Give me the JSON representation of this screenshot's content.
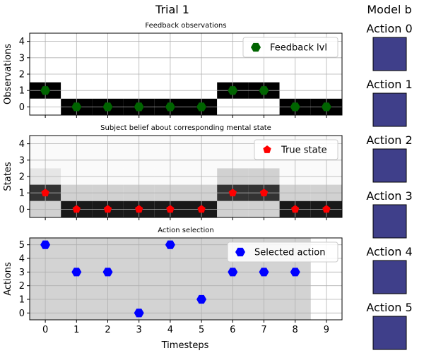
{
  "figure_title": "Trial 1",
  "model_title": "Model b",
  "xlabel": "Timesteps",
  "x_ticks": [
    0,
    1,
    2,
    3,
    4,
    5,
    6,
    7,
    8,
    9
  ],
  "colors": {
    "feedback_marker": "#006400",
    "true_state_marker": "#ff0000",
    "action_marker": "#0000ff",
    "action_box": "#3f3f8a",
    "grid": "#b0b0b0"
  },
  "chart_data": [
    {
      "type": "heatmap",
      "title": "Feedback observations",
      "ylabel": "Observations",
      "ylim": [
        -0.5,
        4.5
      ],
      "y_ticks": [
        0,
        1,
        2,
        3,
        4
      ],
      "legend": {
        "label": "Feedback lvl",
        "placement": "top-right"
      },
      "heatmap": {
        "value_encoding": "black = 1, white = 0",
        "rows": [
          {
            "y": 4,
            "values": [
              0,
              0,
              0,
              0,
              0,
              0,
              0,
              0,
              0,
              0
            ]
          },
          {
            "y": 3,
            "values": [
              0,
              0,
              0,
              0,
              0,
              0,
              0,
              0,
              0,
              0
            ]
          },
          {
            "y": 2,
            "values": [
              0,
              0,
              0,
              0,
              0,
              0,
              0,
              0,
              0,
              0
            ]
          },
          {
            "y": 1,
            "values": [
              1,
              0,
              0,
              0,
              0,
              0,
              1,
              1,
              0,
              0
            ]
          },
          {
            "y": 0,
            "values": [
              0,
              1,
              1,
              1,
              1,
              1,
              0,
              0,
              1,
              1
            ]
          }
        ]
      },
      "series": [
        {
          "name": "Feedback lvl",
          "x": [
            0,
            1,
            2,
            3,
            4,
            5,
            6,
            7,
            8,
            9
          ],
          "y": [
            1,
            0,
            0,
            0,
            0,
            0,
            1,
            1,
            0,
            0
          ]
        }
      ]
    },
    {
      "type": "heatmap",
      "title": "Subject belief about corresponding mental state",
      "ylabel": "States",
      "ylim": [
        -0.5,
        4.5
      ],
      "y_ticks": [
        0,
        1,
        2,
        3,
        4
      ],
      "legend": {
        "label": "True state",
        "placement": "top-right"
      },
      "heatmap": {
        "value_encoding": "belief probability, darker = higher",
        "rows": [
          {
            "y": 4,
            "values": [
              0.02,
              0.02,
              0.02,
              0.02,
              0.02,
              0.02,
              0.02,
              0.02,
              0.02,
              0.02
            ]
          },
          {
            "y": 3,
            "values": [
              0.02,
              0.02,
              0.02,
              0.02,
              0.02,
              0.02,
              0.02,
              0.02,
              0.02,
              0.02
            ]
          },
          {
            "y": 2,
            "values": [
              0.1,
              0.02,
              0.02,
              0.02,
              0.02,
              0.02,
              0.18,
              0.18,
              0.02,
              0.02
            ]
          },
          {
            "y": 1,
            "values": [
              0.8,
              0.18,
              0.18,
              0.18,
              0.18,
              0.18,
              0.8,
              0.8,
              0.18,
              0.18
            ]
          },
          {
            "y": 0,
            "values": [
              0.18,
              0.9,
              0.9,
              0.9,
              0.9,
              0.9,
              0.18,
              0.18,
              0.9,
              0.9
            ]
          }
        ]
      },
      "series": [
        {
          "name": "True state",
          "x": [
            0,
            1,
            2,
            3,
            4,
            5,
            6,
            7,
            8,
            9
          ],
          "y": [
            1,
            0,
            0,
            0,
            0,
            0,
            1,
            1,
            0,
            0
          ]
        }
      ]
    },
    {
      "type": "scatter",
      "title": "Action selection",
      "ylabel": "Actions",
      "ylim": [
        -0.5,
        5.5
      ],
      "y_ticks": [
        0,
        1,
        2,
        3,
        4,
        5
      ],
      "legend": {
        "label": "Selected action",
        "placement": "top-right"
      },
      "shaded_x_range": [
        -0.5,
        8.5
      ],
      "series": [
        {
          "name": "Selected action",
          "x": [
            0,
            1,
            2,
            3,
            4,
            5,
            6,
            7,
            8
          ],
          "y": [
            5,
            3,
            3,
            0,
            5,
            1,
            3,
            3,
            3
          ]
        }
      ]
    }
  ],
  "model_actions": [
    {
      "label": "Action 0"
    },
    {
      "label": "Action 1"
    },
    {
      "label": "Action 2"
    },
    {
      "label": "Action 3"
    },
    {
      "label": "Action 4"
    },
    {
      "label": "Action 5"
    }
  ]
}
